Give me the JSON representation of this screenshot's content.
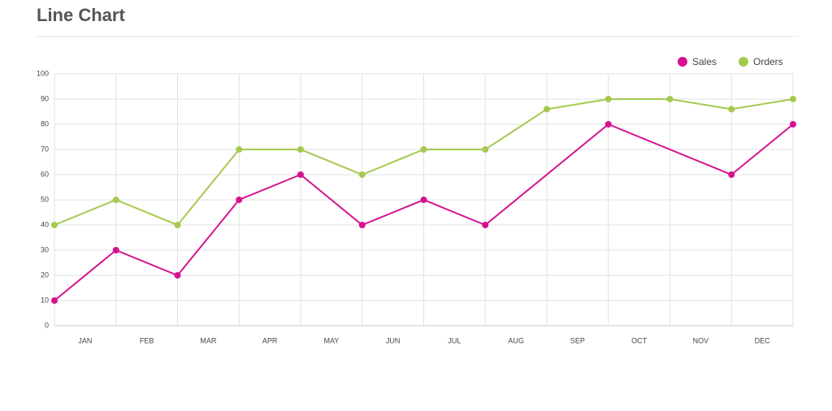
{
  "chart_data": {
    "type": "line",
    "title": "Line Chart",
    "x": [
      0,
      1,
      2,
      3,
      4,
      5,
      6,
      7,
      8,
      9,
      10,
      11,
      12
    ],
    "xlim": [
      0,
      12
    ],
    "xticks": [
      {
        "value": 0.5,
        "label": "JAN"
      },
      {
        "value": 1.5,
        "label": "FEB"
      },
      {
        "value": 2.5,
        "label": "MAR"
      },
      {
        "value": 3.5,
        "label": "APR"
      },
      {
        "value": 4.5,
        "label": "MAY"
      },
      {
        "value": 5.5,
        "label": "JUN"
      },
      {
        "value": 6.5,
        "label": "JUL"
      },
      {
        "value": 7.5,
        "label": "AUG"
      },
      {
        "value": 8.5,
        "label": "SEP"
      },
      {
        "value": 9.5,
        "label": "OCT"
      },
      {
        "value": 10.5,
        "label": "NOV"
      },
      {
        "value": 11.5,
        "label": "DEC"
      }
    ],
    "ylim": [
      0,
      100
    ],
    "yticks": [
      0,
      10,
      20,
      30,
      40,
      50,
      60,
      70,
      80,
      90,
      100
    ],
    "grid": true,
    "legend": "top-right",
    "series": [
      {
        "name": "Sales",
        "color": "#d6128f",
        "x": [
          0,
          1,
          2,
          3,
          4,
          5,
          6,
          7,
          9,
          11,
          12
        ],
        "values": [
          10,
          30,
          20,
          50,
          60,
          40,
          50,
          40,
          80,
          60,
          80
        ]
      },
      {
        "name": "Orders",
        "color": "#a5c94f",
        "values": [
          40,
          50,
          40,
          70,
          70,
          60,
          70,
          70,
          86,
          90,
          90,
          86,
          90
        ]
      }
    ]
  }
}
